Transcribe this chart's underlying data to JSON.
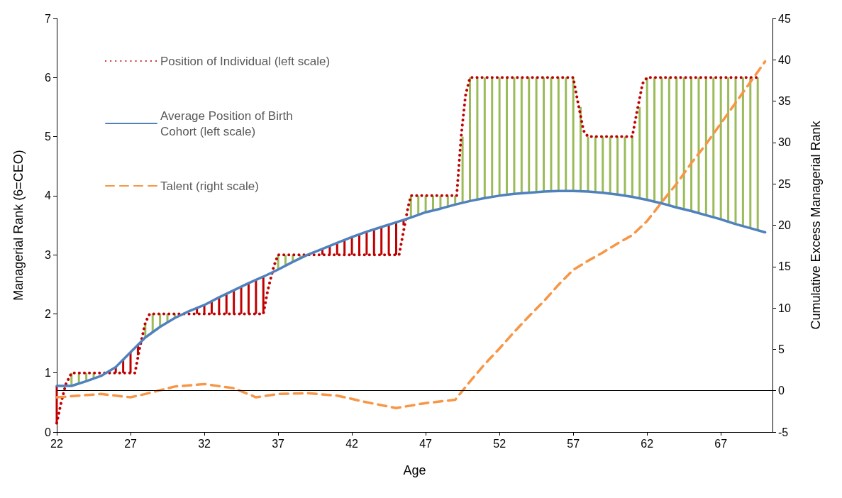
{
  "chart_data": {
    "type": "line",
    "xlabel": "Age",
    "ylabel": "Managerial Rank (6=CEO)",
    "y2label": "Cumulative Excess Managerial Rank",
    "xlim": [
      22,
      70.5
    ],
    "xticks": [
      22,
      27,
      32,
      37,
      42,
      47,
      52,
      57,
      62,
      67
    ],
    "ylim": [
      0,
      7
    ],
    "yticks": [
      0,
      1,
      2,
      3,
      4,
      5,
      6,
      7
    ],
    "y2lim": [
      -5,
      45
    ],
    "y2ticks": [
      -5,
      0,
      5,
      10,
      15,
      20,
      25,
      30,
      35,
      40,
      45
    ],
    "grid": false,
    "legend": "top left",
    "marker": "none",
    "ref_lines": [
      {
        "axis": "y2",
        "value": 0,
        "label": null,
        "color": "#000000"
      }
    ],
    "series": [
      {
        "type": "bar",
        "color": "#9bbb59",
        "x": [
          23,
          23.5,
          24,
          24.5,
          28,
          28.5,
          29,
          29.5,
          30,
          30.5,
          37,
          37.5,
          38,
          38.5,
          46,
          46.5,
          47,
          47.5,
          48,
          48.5,
          49,
          49.5,
          50,
          50.5,
          51,
          51.5,
          52,
          52.5,
          53,
          53.5,
          54,
          54.5,
          55,
          55.5,
          56,
          56.5,
          57,
          57.5,
          58,
          58.5,
          59,
          59.5,
          60,
          60.5,
          61,
          61.5,
          62,
          62.5,
          63,
          63.5,
          64,
          64.5,
          65,
          65.5,
          66,
          66.5,
          67,
          67.5,
          68,
          68.5,
          69,
          69.5
        ],
        "base": [
          0.78,
          0.82,
          0.86,
          0.9,
          1.6,
          1.69,
          1.78,
          1.85,
          1.93,
          1.99,
          2.75,
          2.82,
          2.88,
          2.94,
          3.63,
          3.68,
          3.72,
          3.75,
          3.78,
          3.82,
          3.85,
          3.88,
          3.91,
          3.94,
          3.96,
          3.98,
          4.0,
          4.02,
          4.03,
          4.04,
          4.05,
          4.06,
          4.07,
          4.08,
          4.08,
          4.08,
          4.08,
          4.08,
          4.07,
          4.06,
          4.05,
          4.04,
          4.02,
          4.0,
          3.98,
          3.96,
          3.93,
          3.9,
          3.87,
          3.84,
          3.8,
          3.77,
          3.74,
          3.71,
          3.67,
          3.64,
          3.6,
          3.56,
          3.52,
          3.49,
          3.45,
          3.42
        ],
        "values": [
          0.22,
          0.18,
          0.14,
          0.1,
          0.25,
          0.31,
          0.22,
          0.15,
          0.07,
          0.01,
          0.25,
          0.18,
          0.12,
          0.06,
          0.37,
          0.32,
          0.28,
          0.25,
          0.22,
          0.18,
          0.15,
          1.12,
          2.09,
          2.06,
          2.04,
          2.02,
          2.0,
          1.98,
          1.97,
          1.96,
          1.95,
          1.94,
          1.93,
          1.92,
          1.92,
          1.92,
          1.92,
          1.42,
          0.93,
          0.94,
          0.95,
          0.96,
          0.98,
          1.0,
          1.02,
          1.54,
          2.07,
          2.1,
          2.13,
          2.16,
          2.2,
          2.23,
          2.26,
          2.29,
          2.33,
          2.36,
          2.4,
          2.44,
          2.48,
          2.51,
          2.55,
          2.58
        ]
      },
      {
        "type": "bar",
        "color": "#c00000",
        "x": [
          22,
          26,
          26.5,
          27,
          27.5,
          31.5,
          32,
          32.5,
          33,
          33.5,
          34,
          34.5,
          35,
          35.5,
          36,
          40,
          40.5,
          41,
          41.5,
          42,
          42.5,
          43,
          43.5,
          44,
          44.5,
          45,
          45.5
        ],
        "base": [
          0.78,
          1.1,
          1.22,
          1.35,
          1.47,
          2.1,
          2.15,
          2.22,
          2.28,
          2.34,
          2.4,
          2.46,
          2.52,
          2.57,
          2.63,
          3.1,
          3.15,
          3.2,
          3.25,
          3.3,
          3.35,
          3.39,
          3.43,
          3.47,
          3.51,
          3.55,
          3.59
        ],
        "values": [
          -0.63,
          -0.1,
          -0.22,
          -0.35,
          -0.17,
          -0.1,
          -0.15,
          -0.22,
          -0.28,
          -0.34,
          -0.4,
          -0.46,
          -0.52,
          -0.57,
          -0.63,
          -0.1,
          -0.15,
          -0.2,
          -0.25,
          -0.3,
          -0.35,
          -0.39,
          -0.43,
          -0.47,
          -0.51,
          -0.55,
          -0.09
        ]
      },
      {
        "name": "Position of Individual (left scale)",
        "color": "#c00000",
        "line_style": "dotted",
        "x": [
          22,
          22.3,
          22.6,
          23,
          27.3,
          27.6,
          28,
          28.3,
          36,
          36.3,
          36.7,
          37,
          45.2,
          45.5,
          45.8,
          46,
          49.1,
          49.4,
          49.7,
          50,
          57,
          57.3,
          57.7,
          58,
          61,
          61.3,
          61.7,
          62,
          69.5
        ],
        "values": [
          0.15,
          0.5,
          0.8,
          1,
          1,
          1.4,
          1.85,
          2,
          2,
          2.4,
          2.8,
          3,
          3,
          3.4,
          3.8,
          4,
          4,
          5,
          5.7,
          6,
          6,
          5.6,
          5.1,
          5,
          5,
          5.4,
          5.9,
          6,
          6
        ]
      },
      {
        "name": "Average Position of Birth Cohort (left scale)",
        "color": "#4f81bd",
        "line_style": "solid",
        "x": [
          22,
          23,
          24,
          25,
          26,
          27,
          28,
          29,
          30,
          31,
          32,
          33,
          34,
          35,
          36,
          37,
          38,
          39,
          40,
          41,
          42,
          43,
          44,
          45,
          46,
          47,
          48,
          49,
          50,
          51,
          52,
          53,
          54,
          55,
          56,
          57,
          58,
          59,
          60,
          61,
          62,
          63,
          64,
          65,
          66,
          67,
          68,
          69,
          70
        ],
        "values": [
          0.78,
          0.78,
          0.86,
          0.95,
          1.1,
          1.35,
          1.6,
          1.78,
          1.93,
          2.05,
          2.15,
          2.28,
          2.4,
          2.52,
          2.63,
          2.75,
          2.88,
          3.0,
          3.1,
          3.2,
          3.3,
          3.39,
          3.47,
          3.55,
          3.63,
          3.72,
          3.78,
          3.85,
          3.91,
          3.96,
          4.0,
          4.03,
          4.05,
          4.07,
          4.08,
          4.08,
          4.07,
          4.05,
          4.02,
          3.98,
          3.93,
          3.87,
          3.8,
          3.74,
          3.67,
          3.6,
          3.52,
          3.45,
          3.38
        ]
      },
      {
        "name": "Talent (right scale)",
        "color": "#f79646",
        "line_style": "dashed",
        "axis": "y2",
        "x": [
          22,
          25,
          27,
          28,
          30,
          32,
          34,
          35.5,
          37,
          39,
          41,
          43,
          45,
          47,
          49,
          50,
          51,
          52,
          53,
          54,
          55,
          56,
          57,
          58,
          59,
          60,
          61,
          62,
          63,
          64,
          65,
          66,
          67,
          68,
          69,
          70
        ],
        "values": [
          -0.8,
          -0.4,
          -0.8,
          -0.4,
          0.5,
          0.8,
          0.3,
          -0.8,
          -0.4,
          -0.3,
          -0.6,
          -1.4,
          -2.1,
          -1.5,
          -1.1,
          1.1,
          3.2,
          5.1,
          7.1,
          9,
          10.8,
          12.8,
          14.6,
          15.7,
          16.7,
          17.8,
          18.8,
          20.5,
          22.8,
          25,
          27.5,
          29.8,
          32.3,
          34.8,
          37.3,
          39.8
        ]
      }
    ]
  }
}
